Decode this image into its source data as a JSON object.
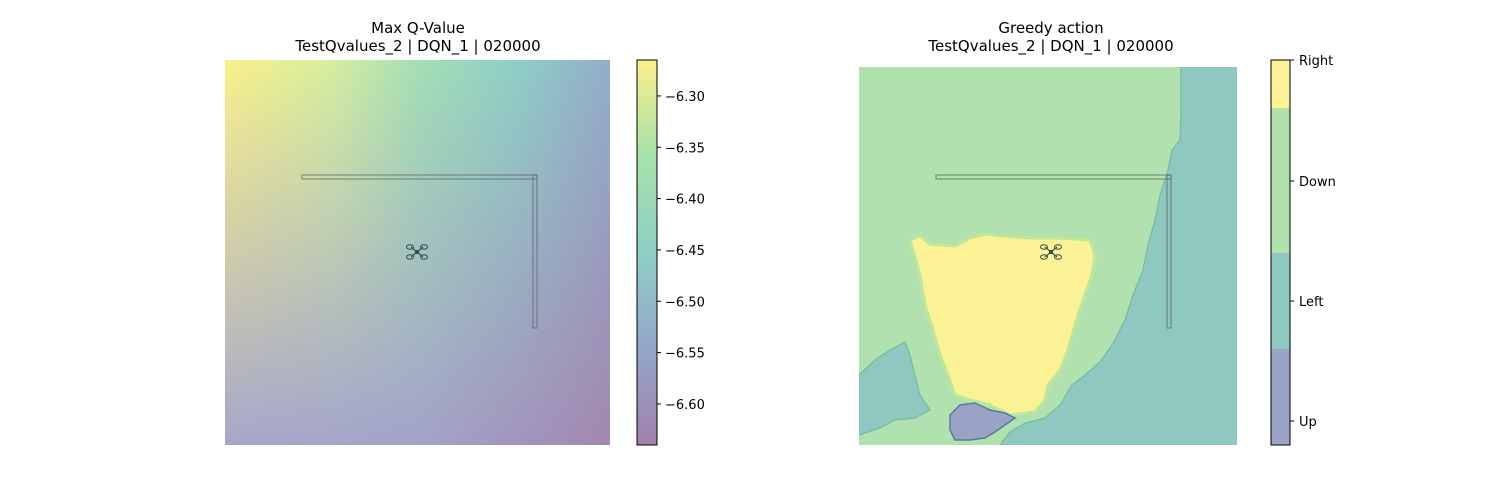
{
  "chart_data": [
    {
      "type": "heatmap",
      "title_line1": "Max Q-Value",
      "title_line2": "TestQvalues_2 | DQN_1 | 020000",
      "colormap": "viridis",
      "alpha": 0.5,
      "colorbar": {
        "range": [
          -6.64,
          -6.265
        ],
        "ticks": [
          -6.3,
          -6.35,
          -6.4,
          -6.45,
          -6.5,
          -6.55,
          -6.6
        ],
        "tick_labels": [
          "−6.30",
          "−6.35",
          "−6.40",
          "−6.45",
          "−6.50",
          "−6.55",
          "−6.60"
        ]
      },
      "corner_values": {
        "top_left": -6.27,
        "top_right": -6.47,
        "bottom_left": -6.52,
        "bottom_right": -6.63
      },
      "axes_visible": false
    },
    {
      "type": "heatmap",
      "title_line1": "Greedy action",
      "title_line2": "TestQvalues_2 | DQN_1 | 020000",
      "colormap": "viridis",
      "alpha": 0.5,
      "categories": [
        "Up",
        "Left",
        "Down",
        "Right"
      ],
      "category_colors": [
        "#9aa3c6",
        "#8fc7c1",
        "#b1e1ae",
        "#fbf296"
      ],
      "colorbar": {
        "ticks": [
          "Right",
          "Down",
          "Left",
          "Up"
        ]
      },
      "axes_visible": false
    }
  ],
  "colors": {
    "obstacle_edge": "#555555",
    "drone": "#2f4f4f"
  },
  "icons": {
    "drone": "quadcopter-icon"
  }
}
